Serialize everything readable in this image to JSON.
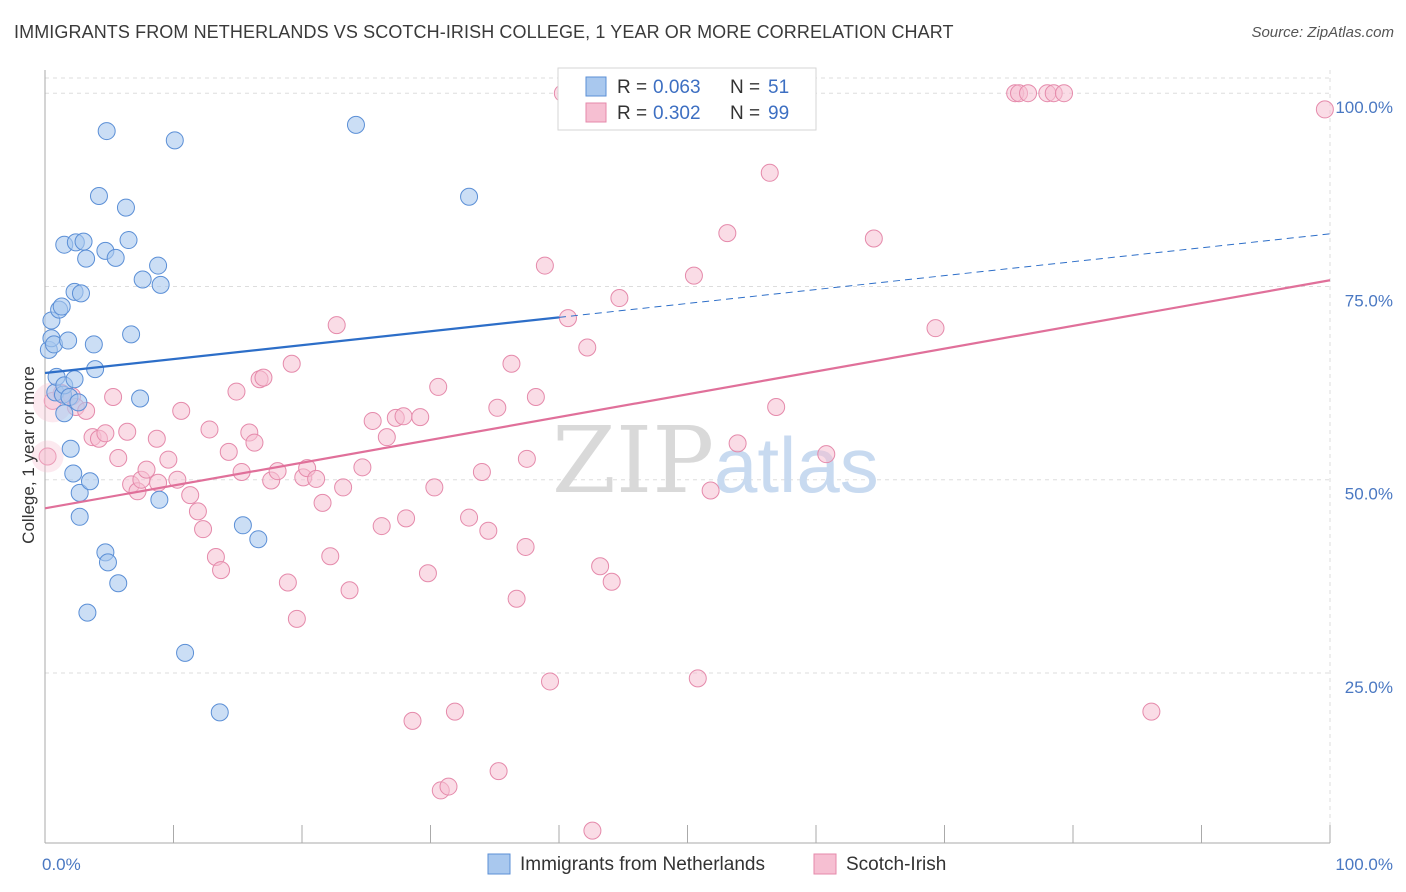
{
  "title": "IMMIGRANTS FROM NETHERLANDS VS SCOTCH-IRISH COLLEGE, 1 YEAR OR MORE CORRELATION CHART",
  "source": "Source: ZipAtlas.com",
  "watermark": {
    "zip": "ZIP",
    "atlas": "atlas"
  },
  "colors": {
    "blue_fill": "#a9c8ee",
    "blue_stroke": "#5b8fd6",
    "blue_line": "#2d6ec8",
    "pink_fill": "#f6bfd2",
    "pink_stroke": "#e58aab",
    "pink_line": "#e0709a",
    "grid": "#dddddd",
    "axis": "#aaaaaa",
    "tick_text": "#4a78c2"
  },
  "chart_data": {
    "type": "scatter",
    "title": "IMMIGRANTS FROM NETHERLANDS VS SCOTCH-IRISH COLLEGE, 1 YEAR OR MORE CORRELATION CHART",
    "xlabel": "",
    "ylabel": "College, 1 year or more",
    "xlim": [
      0,
      100
    ],
    "ylim": [
      3,
      103
    ],
    "x_tick_labels": [
      {
        "value": 0,
        "label": "0.0%"
      },
      {
        "value": 100,
        "label": "100.0%"
      }
    ],
    "y_ticks": [
      {
        "value": 25,
        "label": "25.0%"
      },
      {
        "value": 50,
        "label": "50.0%"
      },
      {
        "value": 75,
        "label": "75.0%"
      },
      {
        "value": 100,
        "label": "100.0%"
      }
    ],
    "legend": {
      "position": "top-center",
      "entries": [
        {
          "r_label": "R =",
          "r_value": "0.063",
          "n_label": "N =",
          "n_value": "51"
        },
        {
          "r_label": "R =",
          "r_value": "0.302",
          "n_label": "N =",
          "n_value": "99"
        }
      ]
    },
    "series": [
      {
        "name": "Immigrants from Netherlands",
        "color": "blue",
        "trend": {
          "x": [
            0,
            40
          ],
          "y": [
            63.8,
            71.0
          ],
          "dashed_to": [
            100,
            81.8
          ]
        },
        "points": [
          [
            0.3,
            66.8
          ],
          [
            0.5,
            68.3
          ],
          [
            0.5,
            70.6
          ],
          [
            0.7,
            67.5
          ],
          [
            0.8,
            61.3
          ],
          [
            0.9,
            63.3
          ],
          [
            1.1,
            72.0
          ],
          [
            1.3,
            72.4
          ],
          [
            1.4,
            61.0
          ],
          [
            1.5,
            58.6
          ],
          [
            1.5,
            62.2
          ],
          [
            1.5,
            80.4
          ],
          [
            1.8,
            68.0
          ],
          [
            1.9,
            60.7
          ],
          [
            2.0,
            54.0
          ],
          [
            2.2,
            50.8
          ],
          [
            2.3,
            63.0
          ],
          [
            2.3,
            74.3
          ],
          [
            2.4,
            80.7
          ],
          [
            2.6,
            60.0
          ],
          [
            2.7,
            45.2
          ],
          [
            2.7,
            48.3
          ],
          [
            2.8,
            74.1
          ],
          [
            3.0,
            80.8
          ],
          [
            3.2,
            78.6
          ],
          [
            3.3,
            32.8
          ],
          [
            3.5,
            49.8
          ],
          [
            3.8,
            67.5
          ],
          [
            3.9,
            64.3
          ],
          [
            4.2,
            86.7
          ],
          [
            4.7,
            79.6
          ],
          [
            4.7,
            40.6
          ],
          [
            4.8,
            95.1
          ],
          [
            4.9,
            39.3
          ],
          [
            5.5,
            78.7
          ],
          [
            5.7,
            36.6
          ],
          [
            6.3,
            85.2
          ],
          [
            6.5,
            81.0
          ],
          [
            6.7,
            68.8
          ],
          [
            7.4,
            60.5
          ],
          [
            7.6,
            75.9
          ],
          [
            8.8,
            77.7
          ],
          [
            8.9,
            47.4
          ],
          [
            9.0,
            75.2
          ],
          [
            10.1,
            93.9
          ],
          [
            10.9,
            27.6
          ],
          [
            13.6,
            19.9
          ],
          [
            15.4,
            44.1
          ],
          [
            16.6,
            42.3
          ],
          [
            24.2,
            95.9
          ],
          [
            33.0,
            86.6
          ]
        ]
      },
      {
        "name": "Scotch-Irish",
        "color": "pink",
        "trend": {
          "x": [
            0,
            100
          ],
          "y": [
            46.3,
            75.8
          ]
        },
        "points": [
          [
            0.2,
            53.0
          ],
          [
            0.6,
            60.2
          ],
          [
            1.3,
            61.2
          ],
          [
            2.1,
            60.8
          ],
          [
            2.4,
            59.4
          ],
          [
            3.2,
            58.9
          ],
          [
            3.7,
            55.5
          ],
          [
            4.2,
            55.3
          ],
          [
            4.7,
            56.0
          ],
          [
            5.3,
            60.7
          ],
          [
            5.7,
            52.8
          ],
          [
            6.4,
            56.2
          ],
          [
            6.7,
            49.4
          ],
          [
            7.2,
            48.5
          ],
          [
            7.5,
            50.0
          ],
          [
            7.9,
            51.3
          ],
          [
            8.7,
            55.3
          ],
          [
            8.8,
            49.6
          ],
          [
            9.6,
            52.6
          ],
          [
            10.3,
            50.0
          ],
          [
            10.6,
            58.9
          ],
          [
            11.3,
            48.0
          ],
          [
            11.9,
            45.9
          ],
          [
            12.3,
            43.6
          ],
          [
            12.8,
            56.5
          ],
          [
            13.3,
            40.0
          ],
          [
            13.7,
            38.3
          ],
          [
            14.3,
            53.6
          ],
          [
            14.9,
            61.4
          ],
          [
            15.3,
            51.0
          ],
          [
            15.9,
            56.1
          ],
          [
            16.3,
            54.8
          ],
          [
            16.7,
            63.0
          ],
          [
            17.0,
            63.2
          ],
          [
            17.6,
            49.9
          ],
          [
            18.1,
            51.1
          ],
          [
            18.9,
            36.7
          ],
          [
            19.2,
            65.0
          ],
          [
            19.6,
            32.0
          ],
          [
            20.1,
            50.3
          ],
          [
            20.4,
            51.5
          ],
          [
            21.1,
            50.1
          ],
          [
            21.6,
            47.0
          ],
          [
            22.2,
            40.1
          ],
          [
            22.7,
            70.0
          ],
          [
            23.2,
            49.0
          ],
          [
            23.7,
            35.7
          ],
          [
            24.7,
            51.6
          ],
          [
            25.5,
            57.6
          ],
          [
            26.2,
            44.0
          ],
          [
            26.6,
            55.5
          ],
          [
            27.3,
            58.0
          ],
          [
            27.9,
            58.2
          ],
          [
            28.1,
            45.0
          ],
          [
            28.6,
            18.8
          ],
          [
            29.2,
            58.1
          ],
          [
            29.8,
            37.9
          ],
          [
            30.3,
            49.0
          ],
          [
            30.6,
            62.0
          ],
          [
            30.8,
            9.8
          ],
          [
            31.4,
            10.3
          ],
          [
            31.9,
            20.0
          ],
          [
            33.0,
            45.1
          ],
          [
            34.0,
            51.0
          ],
          [
            34.5,
            43.4
          ],
          [
            35.3,
            12.3
          ],
          [
            35.2,
            59.3
          ],
          [
            36.3,
            65.0
          ],
          [
            36.7,
            34.6
          ],
          [
            37.4,
            41.3
          ],
          [
            37.5,
            52.7
          ],
          [
            38.2,
            60.7
          ],
          [
            38.9,
            77.7
          ],
          [
            39.3,
            23.9
          ],
          [
            40.3,
            100.0
          ],
          [
            40.7,
            70.9
          ],
          [
            42.2,
            67.1
          ],
          [
            42.6,
            4.6
          ],
          [
            43.2,
            38.8
          ],
          [
            44.1,
            36.8
          ],
          [
            44.7,
            73.5
          ],
          [
            50.5,
            76.4
          ],
          [
            50.8,
            24.3
          ],
          [
            51.8,
            48.6
          ],
          [
            53.1,
            81.9
          ],
          [
            53.9,
            54.7
          ],
          [
            56.4,
            89.7
          ],
          [
            56.9,
            59.4
          ],
          [
            60.8,
            53.3
          ],
          [
            64.5,
            81.2
          ],
          [
            69.3,
            69.6
          ],
          [
            75.5,
            100.0
          ],
          [
            75.8,
            100.0
          ],
          [
            76.5,
            100.0
          ],
          [
            78.0,
            100.0
          ],
          [
            78.5,
            100.0
          ],
          [
            79.3,
            100.0
          ],
          [
            86.1,
            20.0
          ],
          [
            99.6,
            97.9
          ]
        ]
      }
    ]
  },
  "bottom_legend": [
    {
      "label": "Immigrants from Netherlands",
      "color": "blue"
    },
    {
      "label": "Scotch-Irish",
      "color": "pink"
    }
  ]
}
